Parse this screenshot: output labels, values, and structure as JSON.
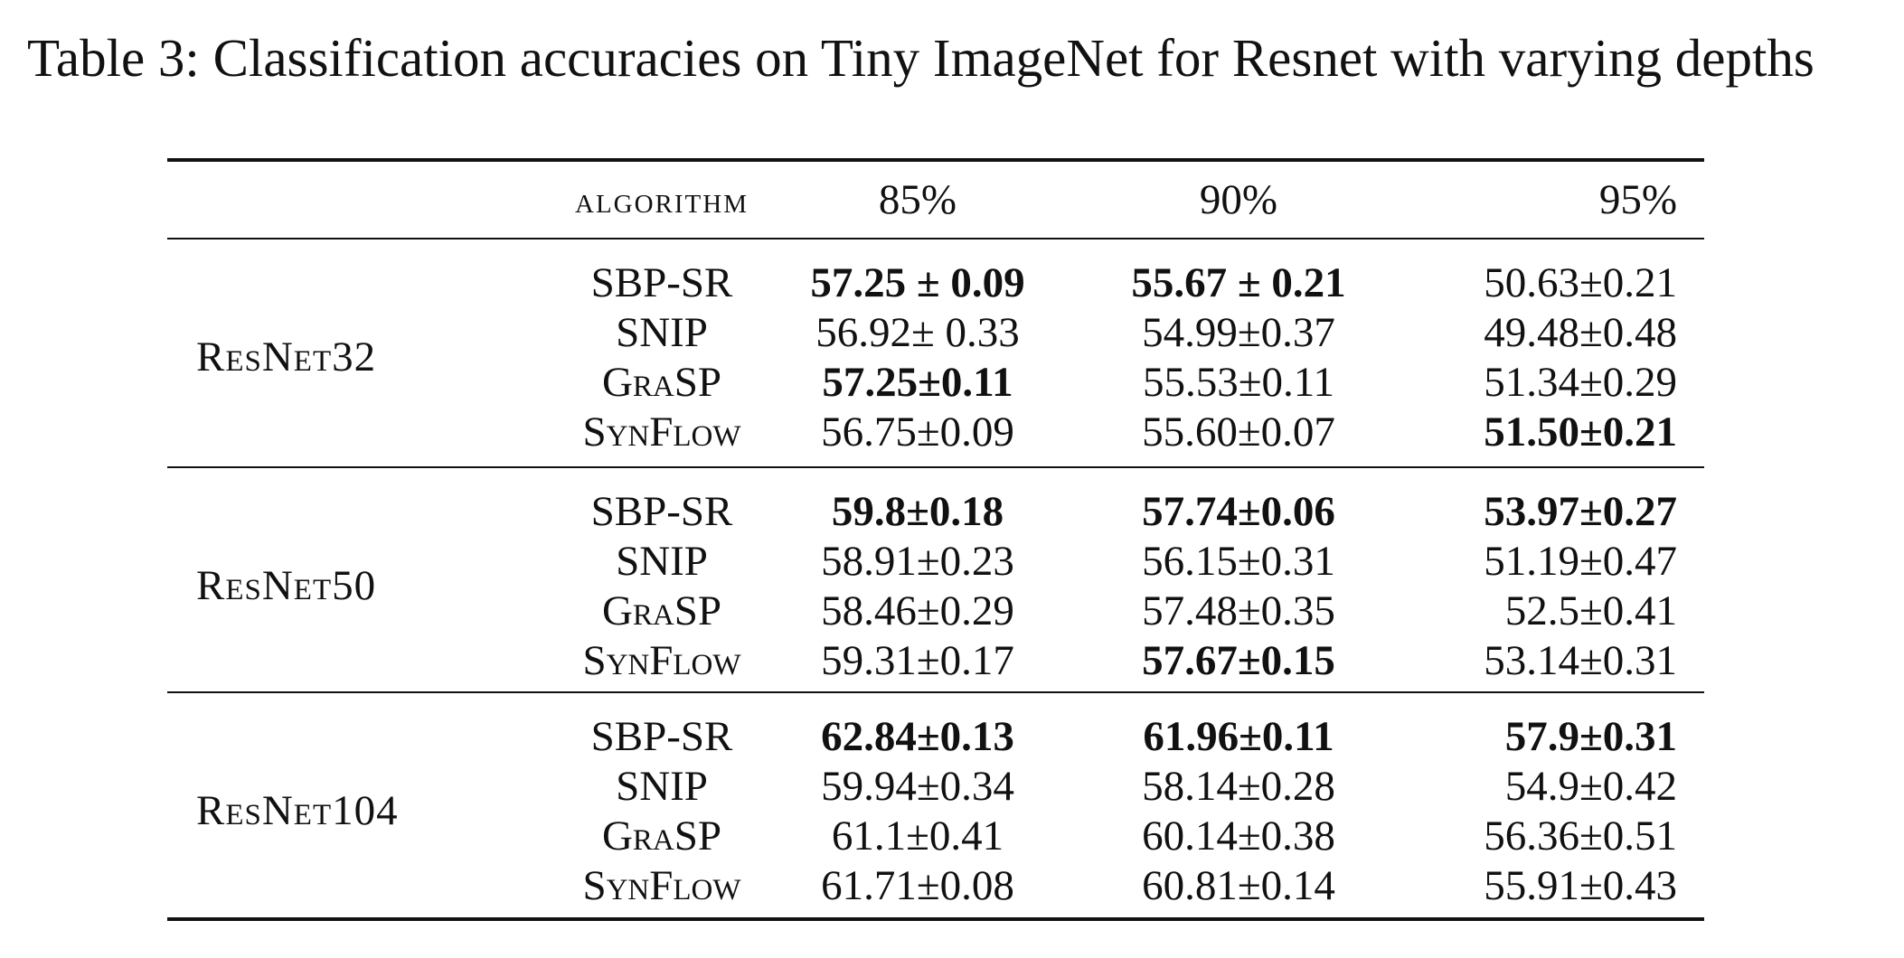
{
  "caption": {
    "label": "Table 3:",
    "text": "Classification accuracies on Tiny ImageNet for Resnet with varying depths"
  },
  "table": {
    "headers": {
      "algorithm": "algorithm",
      "col_85": "85%",
      "col_90": "90%",
      "col_95": "95%"
    },
    "groups": [
      {
        "model": "ResNet32",
        "rows": [
          {
            "algorithm": "SBP-SR",
            "v85": "57.25 ± 0.09",
            "v90": "55.67 ± 0.21",
            "v95": "50.63±0.21",
            "bold85": true,
            "bold90": true,
            "bold95": false,
            "smallcaps": false
          },
          {
            "algorithm": "SNIP",
            "v85": "56.92± 0.33",
            "v90": "54.99±0.37",
            "v95": "49.48±0.48",
            "bold85": false,
            "bold90": false,
            "bold95": false,
            "smallcaps": false
          },
          {
            "algorithm": "GraSP",
            "v85": "57.25±0.11",
            "v90": "55.53±0.11",
            "v95": "51.34±0.29",
            "bold85": true,
            "bold90": false,
            "bold95": false,
            "smallcaps": true
          },
          {
            "algorithm": "SynFlow",
            "v85": "56.75±0.09",
            "v90": "55.60±0.07",
            "v95": "51.50±0.21",
            "bold85": false,
            "bold90": false,
            "bold95": true,
            "smallcaps": true
          }
        ]
      },
      {
        "model": "ResNet50",
        "rows": [
          {
            "algorithm": "SBP-SR",
            "v85": "59.8±0.18",
            "v90": "57.74±0.06",
            "v95": "53.97±0.27",
            "bold85": true,
            "bold90": true,
            "bold95": true,
            "smallcaps": false
          },
          {
            "algorithm": "SNIP",
            "v85": "58.91±0.23",
            "v90": "56.15±0.31",
            "v95": "51.19±0.47",
            "bold85": false,
            "bold90": false,
            "bold95": false,
            "smallcaps": false
          },
          {
            "algorithm": "GraSP",
            "v85": "58.46±0.29",
            "v90": "57.48±0.35",
            "v95": "52.5±0.41",
            "bold85": false,
            "bold90": false,
            "bold95": false,
            "smallcaps": true
          },
          {
            "algorithm": "SynFlow",
            "v85": "59.31±0.17",
            "v90": "57.67±0.15",
            "v95": "53.14±0.31",
            "bold85": false,
            "bold90": true,
            "bold95": false,
            "smallcaps": true
          }
        ]
      },
      {
        "model": "ResNet104",
        "rows": [
          {
            "algorithm": "SBP-SR",
            "v85": "62.84±0.13",
            "v90": "61.96±0.11",
            "v95": "57.9±0.31",
            "bold85": true,
            "bold90": true,
            "bold95": true,
            "smallcaps": false
          },
          {
            "algorithm": "SNIP",
            "v85": "59.94±0.34",
            "v90": "58.14±0.28",
            "v95": "54.9±0.42",
            "bold85": false,
            "bold90": false,
            "bold95": false,
            "smallcaps": false
          },
          {
            "algorithm": "GraSP",
            "v85": "61.1±0.41",
            "v90": "60.14±0.38",
            "v95": "56.36±0.51",
            "bold85": false,
            "bold90": false,
            "bold95": false,
            "smallcaps": true
          },
          {
            "algorithm": "SynFlow",
            "v85": "61.71±0.08",
            "v90": "60.81±0.14",
            "v95": "55.91±0.43",
            "bold85": false,
            "bold90": false,
            "bold95": false,
            "smallcaps": true
          }
        ]
      }
    ]
  }
}
